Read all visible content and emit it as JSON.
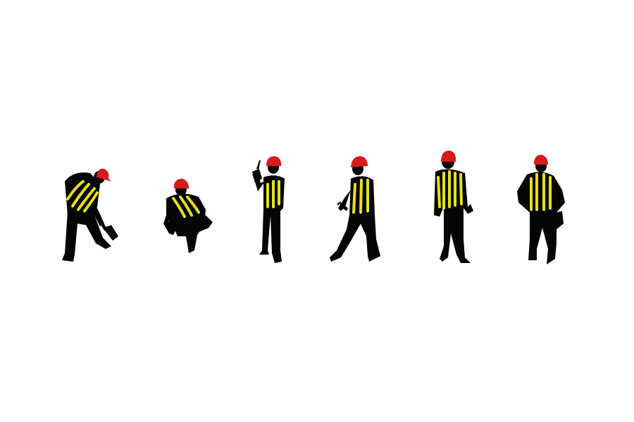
{
  "scene": {
    "background_color": "#ffffff",
    "colors": {
      "silhouette": "#050505",
      "helmet": "#d71a1a",
      "stripes": "#e6e01c"
    },
    "workers": [
      {
        "pose": "digging-with-shovel",
        "tool": "shovel-icon"
      },
      {
        "pose": "crouching-with-hammer",
        "tool": "hammer-icon"
      },
      {
        "pose": "standing-holding-drill",
        "tool": "drill-icon"
      },
      {
        "pose": "walking-with-wrench",
        "tool": "wrench-icon"
      },
      {
        "pose": "standing-front-view",
        "tool": ""
      },
      {
        "pose": "standing-back-view-tool-belt",
        "tool": "tool-belt-icon"
      }
    ]
  }
}
